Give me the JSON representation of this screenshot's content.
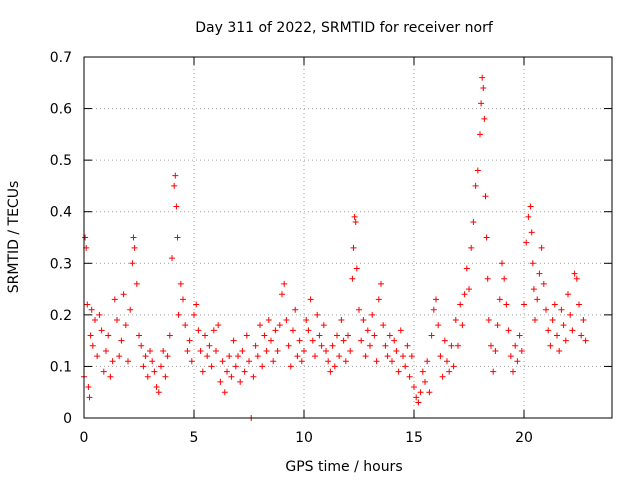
{
  "chart_data": {
    "type": "scatter",
    "title": "Day 311 of 2022, SRMTID for receiver norf",
    "xlabel": "GPS time / hours",
    "ylabel": "SRMTID / TECUs",
    "xlim": [
      0,
      24
    ],
    "ylim": [
      0,
      0.7
    ],
    "xticks": [
      0,
      5,
      10,
      15,
      20
    ],
    "yticks": [
      0,
      0.1,
      0.2,
      0.3,
      0.4,
      0.5,
      0.6,
      0.7
    ],
    "xtick_labels": [
      "0",
      "5",
      "10",
      "15",
      "20"
    ],
    "ytick_labels": [
      "0",
      "0.1",
      "0.2",
      "0.3",
      "0.4",
      "0.5",
      "0.6",
      "0.7"
    ],
    "grid": true,
    "marker": "+",
    "series": [
      {
        "name": "norf SRMTID",
        "color": "#ff0000",
        "x": [
          0.0,
          0.05,
          0.1,
          0.15,
          0.2,
          0.25,
          0.3,
          0.35,
          0.4,
          0.5,
          0.6,
          0.7,
          0.8,
          0.9,
          1.0,
          1.1,
          1.2,
          1.3,
          1.4,
          1.5,
          1.6,
          1.7,
          1.8,
          1.9,
          2.0,
          2.1,
          2.2,
          2.25,
          2.3,
          2.4,
          2.5,
          2.6,
          2.7,
          2.8,
          2.9,
          3.0,
          3.1,
          3.2,
          3.3,
          3.4,
          3.5,
          3.6,
          3.7,
          3.8,
          3.9,
          4.0,
          4.1,
          4.15,
          4.2,
          4.25,
          4.3,
          4.4,
          4.5,
          4.6,
          4.7,
          4.8,
          4.9,
          5.0,
          5.1,
          5.2,
          5.3,
          5.4,
          5.5,
          5.6,
          5.7,
          5.8,
          5.9,
          6.0,
          6.1,
          6.2,
          6.3,
          6.4,
          6.5,
          6.6,
          6.7,
          6.8,
          6.9,
          7.0,
          7.1,
          7.2,
          7.3,
          7.4,
          7.5,
          7.6,
          7.7,
          7.8,
          7.9,
          8.0,
          8.1,
          8.2,
          8.3,
          8.4,
          8.5,
          8.6,
          8.7,
          8.8,
          8.9,
          9.0,
          9.1,
          9.2,
          9.3,
          9.4,
          9.5,
          9.6,
          9.7,
          9.8,
          9.9,
          10.0,
          10.1,
          10.2,
          10.3,
          10.4,
          10.5,
          10.6,
          10.7,
          10.8,
          10.9,
          11.0,
          11.1,
          11.2,
          11.3,
          11.4,
          11.5,
          11.6,
          11.7,
          11.8,
          11.9,
          12.0,
          12.1,
          12.2,
          12.25,
          12.3,
          12.35,
          12.4,
          12.5,
          12.6,
          12.7,
          12.8,
          12.9,
          13.0,
          13.1,
          13.2,
          13.3,
          13.4,
          13.5,
          13.6,
          13.7,
          13.8,
          13.9,
          14.0,
          14.1,
          14.2,
          14.3,
          14.4,
          14.5,
          14.6,
          14.7,
          14.8,
          14.9,
          15.0,
          15.1,
          15.2,
          15.3,
          15.4,
          15.5,
          15.6,
          15.7,
          15.8,
          15.9,
          16.0,
          16.1,
          16.2,
          16.3,
          16.4,
          16.5,
          16.6,
          16.7,
          16.8,
          16.9,
          17.0,
          17.1,
          17.2,
          17.3,
          17.4,
          17.5,
          17.6,
          17.7,
          17.8,
          17.9,
          18.0,
          18.05,
          18.1,
          18.15,
          18.2,
          18.25,
          18.3,
          18.35,
          18.4,
          18.5,
          18.6,
          18.7,
          18.8,
          18.9,
          19.0,
          19.1,
          19.2,
          19.3,
          19.4,
          19.5,
          19.6,
          19.7,
          19.8,
          19.9,
          20.0,
          20.1,
          20.2,
          20.3,
          20.35,
          20.4,
          20.45,
          20.5,
          20.6,
          20.7,
          20.8,
          20.9,
          21.0,
          21.1,
          21.2,
          21.3,
          21.4,
          21.5,
          21.6,
          21.7,
          21.8,
          21.9,
          22.0,
          22.1,
          22.2,
          22.3,
          22.4,
          22.5,
          22.6,
          22.7,
          22.8
        ],
        "y": [
          0.08,
          0.35,
          0.33,
          0.22,
          0.06,
          0.04,
          0.16,
          0.21,
          0.14,
          0.19,
          0.12,
          0.2,
          0.17,
          0.09,
          0.13,
          0.16,
          0.08,
          0.11,
          0.23,
          0.19,
          0.12,
          0.15,
          0.24,
          0.18,
          0.11,
          0.21,
          0.3,
          0.35,
          0.33,
          0.26,
          0.16,
          0.14,
          0.1,
          0.12,
          0.08,
          0.13,
          0.11,
          0.09,
          0.06,
          0.05,
          0.1,
          0.13,
          0.08,
          0.12,
          0.16,
          0.31,
          0.45,
          0.47,
          0.41,
          0.35,
          0.2,
          0.26,
          0.23,
          0.18,
          0.13,
          0.15,
          0.11,
          0.2,
          0.22,
          0.17,
          0.13,
          0.09,
          0.16,
          0.12,
          0.14,
          0.1,
          0.17,
          0.13,
          0.18,
          0.07,
          0.11,
          0.05,
          0.09,
          0.12,
          0.08,
          0.15,
          0.1,
          0.12,
          0.07,
          0.13,
          0.09,
          0.16,
          0.11,
          0.0,
          0.08,
          0.14,
          0.12,
          0.18,
          0.1,
          0.16,
          0.13,
          0.19,
          0.15,
          0.11,
          0.17,
          0.13,
          0.18,
          0.24,
          0.26,
          0.19,
          0.14,
          0.1,
          0.17,
          0.21,
          0.12,
          0.15,
          0.11,
          0.13,
          0.19,
          0.17,
          0.23,
          0.15,
          0.12,
          0.2,
          0.16,
          0.14,
          0.18,
          0.13,
          0.11,
          0.09,
          0.14,
          0.1,
          0.16,
          0.12,
          0.19,
          0.15,
          0.11,
          0.16,
          0.13,
          0.27,
          0.33,
          0.39,
          0.38,
          0.29,
          0.21,
          0.15,
          0.19,
          0.12,
          0.17,
          0.14,
          0.2,
          0.16,
          0.11,
          0.23,
          0.26,
          0.18,
          0.14,
          0.12,
          0.16,
          0.11,
          0.15,
          0.13,
          0.09,
          0.17,
          0.12,
          0.1,
          0.14,
          0.08,
          0.12,
          0.06,
          0.04,
          0.03,
          0.05,
          0.09,
          0.07,
          0.11,
          0.05,
          0.16,
          0.21,
          0.23,
          0.18,
          0.12,
          0.08,
          0.15,
          0.11,
          0.09,
          0.14,
          0.1,
          0.19,
          0.14,
          0.22,
          0.18,
          0.24,
          0.29,
          0.25,
          0.33,
          0.38,
          0.45,
          0.48,
          0.55,
          0.61,
          0.66,
          0.64,
          0.58,
          0.43,
          0.35,
          0.27,
          0.19,
          0.14,
          0.09,
          0.13,
          0.18,
          0.23,
          0.3,
          0.27,
          0.22,
          0.17,
          0.12,
          0.09,
          0.14,
          0.11,
          0.16,
          0.13,
          0.22,
          0.34,
          0.39,
          0.41,
          0.36,
          0.3,
          0.25,
          0.19,
          0.23,
          0.28,
          0.33,
          0.26,
          0.21,
          0.17,
          0.14,
          0.19,
          0.22,
          0.16,
          0.13,
          0.21,
          0.18,
          0.15,
          0.24,
          0.2,
          0.17,
          0.28,
          0.27,
          0.22,
          0.16,
          0.19,
          0.15
        ]
      }
    ]
  }
}
